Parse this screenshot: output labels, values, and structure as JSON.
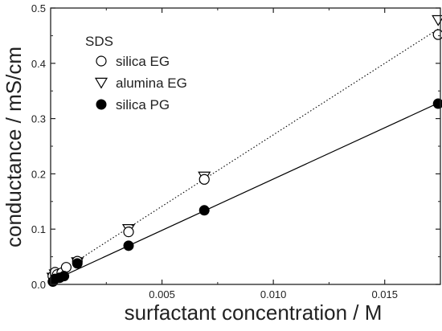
{
  "chart_data": {
    "type": "scatter",
    "xlabel": "surfactant concentration / M",
    "ylabel": "conductance / mS/cm",
    "xlim": [
      0,
      0.0175
    ],
    "ylim": [
      0,
      0.5
    ],
    "xticks": [
      0.005,
      0.01,
      0.015
    ],
    "xtick_labels": [
      "0.005",
      "0.010",
      "0.015"
    ],
    "yticks": [
      0.0,
      0.1,
      0.2,
      0.3,
      0.4,
      0.5
    ],
    "ytick_labels": [
      "0.0",
      "0.1",
      "0.2",
      "0.3",
      "0.4",
      "0.5"
    ],
    "grid": false,
    "legend": {
      "title": "SDS",
      "position": "top-left"
    },
    "series": [
      {
        "name": "silica EG",
        "marker": "open-circle",
        "x": [
          0.0001,
          0.0002,
          0.0003,
          0.0005,
          0.0007,
          0.0012,
          0.0035,
          0.0069,
          0.0174
        ],
        "y": [
          0.015,
          0.022,
          0.018,
          0.021,
          0.031,
          0.042,
          0.095,
          0.19,
          0.452
        ]
      },
      {
        "name": "alumina EG",
        "marker": "open-triangle-down",
        "x": [
          0.0001,
          0.0002,
          0.0003,
          0.0005,
          0.0012,
          0.0035,
          0.0069,
          0.0174
        ],
        "y": [
          0.012,
          0.018,
          0.015,
          0.02,
          0.04,
          0.1,
          0.195,
          0.478
        ]
      },
      {
        "name": "silica PG",
        "marker": "filled-circle",
        "x": [
          0.0001,
          0.0002,
          0.0004,
          0.0006,
          0.0012,
          0.0035,
          0.0069,
          0.0174
        ],
        "y": [
          0.005,
          0.01,
          0.012,
          0.015,
          0.038,
          0.07,
          0.134,
          0.327
        ]
      }
    ],
    "fit_lines": [
      {
        "style": "dotted",
        "x": [
          0,
          0.0174
        ],
        "y": [
          0.012,
          0.462
        ]
      },
      {
        "style": "solid",
        "x": [
          0,
          0.0174
        ],
        "y": [
          0.005,
          0.328
        ]
      }
    ],
    "colors": {
      "axis": "#222222",
      "marker": "#000000",
      "background": "#ffffff"
    }
  }
}
